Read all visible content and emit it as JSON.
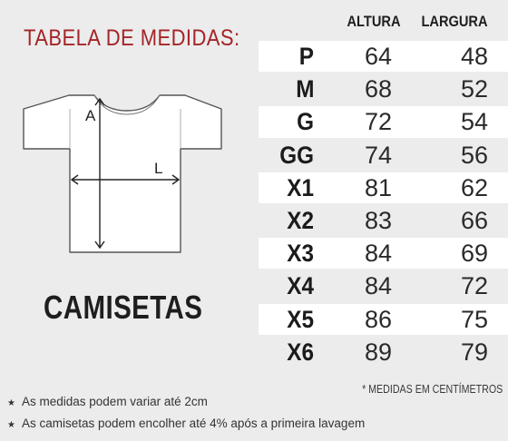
{
  "title": "TABELA DE MEDIDAS:",
  "column_headers": {
    "altura": "ALTURA",
    "largura": "LARGURA"
  },
  "rows": [
    {
      "size": "P",
      "altura": "64",
      "largura": "48"
    },
    {
      "size": "M",
      "altura": "68",
      "largura": "52"
    },
    {
      "size": "G",
      "altura": "72",
      "largura": "54"
    },
    {
      "size": "GG",
      "altura": "74",
      "largura": "56"
    },
    {
      "size": "X1",
      "altura": "81",
      "largura": "62"
    },
    {
      "size": "X2",
      "altura": "83",
      "largura": "66"
    },
    {
      "size": "X3",
      "altura": "84",
      "largura": "69"
    },
    {
      "size": "X4",
      "altura": "84",
      "largura": "72"
    },
    {
      "size": "X5",
      "altura": "86",
      "largura": "75"
    },
    {
      "size": "X6",
      "altura": "89",
      "largura": "79"
    }
  ],
  "diagram": {
    "label_a": "A",
    "label_l": "L"
  },
  "product_label": "CAMISETAS",
  "unit_note": "* MEDIDAS EM CENTÍMETROS",
  "notes": [
    "As medidas podem variar até 2cm",
    "As camisetas podem encolher até 4% após a primeira lavagem"
  ],
  "bullet_icon": "star-icon",
  "colors": {
    "background": "#ececec",
    "title": "#a52428",
    "row_highlight": "#ffffff",
    "text": "#1e1e1e"
  }
}
